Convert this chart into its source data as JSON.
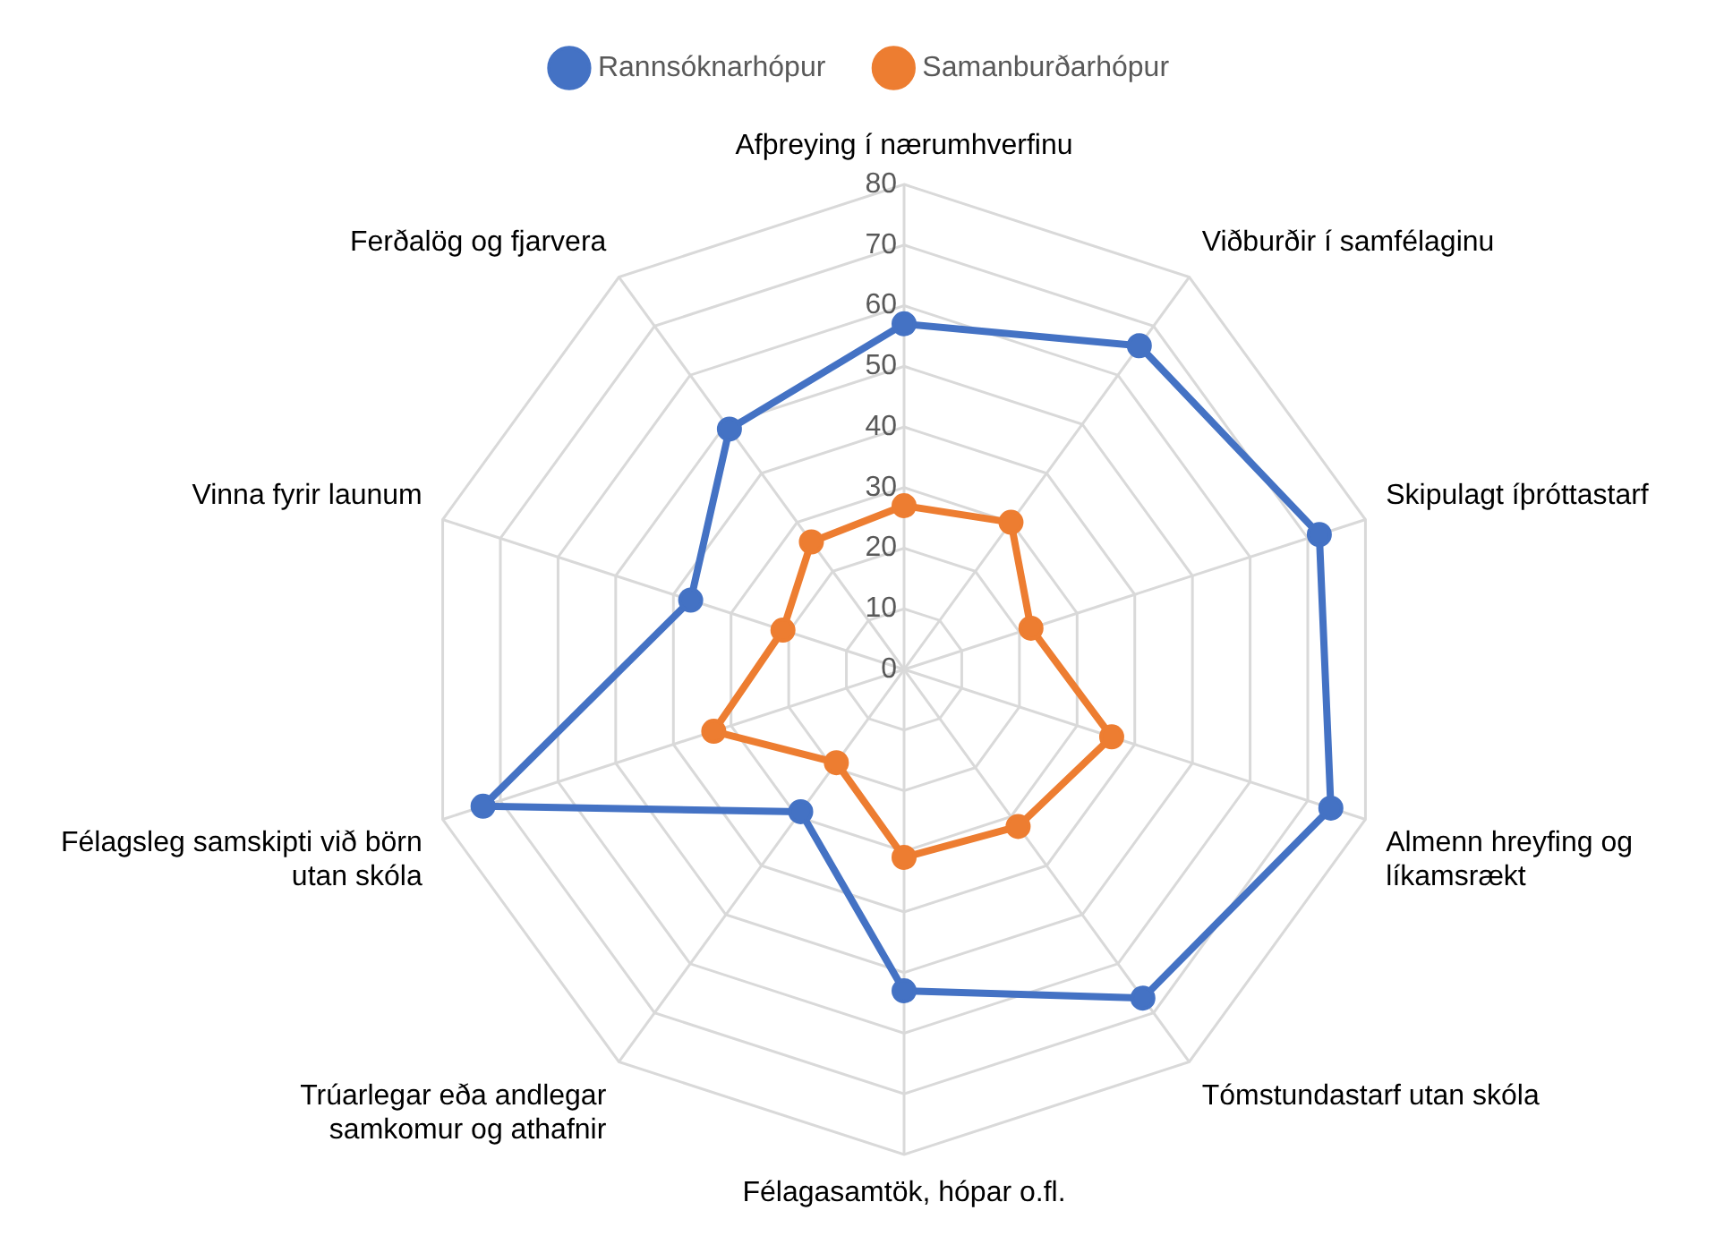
{
  "chart_data": {
    "type": "radar",
    "categories": [
      "Afþreying í nærumhverfinu",
      "Viðburðir í samfélaginu",
      "Skipulagt íþróttastarf",
      "Almenn hreyfing og líkamsrækt",
      "Tómstundastarf utan skóla",
      "Félagasamtök, hópar o.fl.",
      "Trúarlegar eða andlegar samkomur og athafnir",
      "Félagsleg samskipti við börn utan skóla",
      "Vinna fyrir launum",
      "Ferðalög og fjarvera"
    ],
    "series": [
      {
        "name": "Rannsóknarhópur",
        "color": "#4472c4",
        "values": [
          57,
          66,
          72,
          74,
          67,
          53,
          29,
          73,
          37,
          49
        ]
      },
      {
        "name": "Samanburðarhópur",
        "color": "#ed7d31",
        "values": [
          27,
          30,
          22,
          36,
          32,
          31,
          19,
          33,
          21,
          26
        ]
      }
    ],
    "ylim": [
      0,
      80
    ],
    "yticks": [
      0,
      10,
      20,
      30,
      40,
      50,
      60,
      70,
      80
    ],
    "grid": true,
    "legend": "top",
    "marker": "circle",
    "line_style": "solid"
  }
}
